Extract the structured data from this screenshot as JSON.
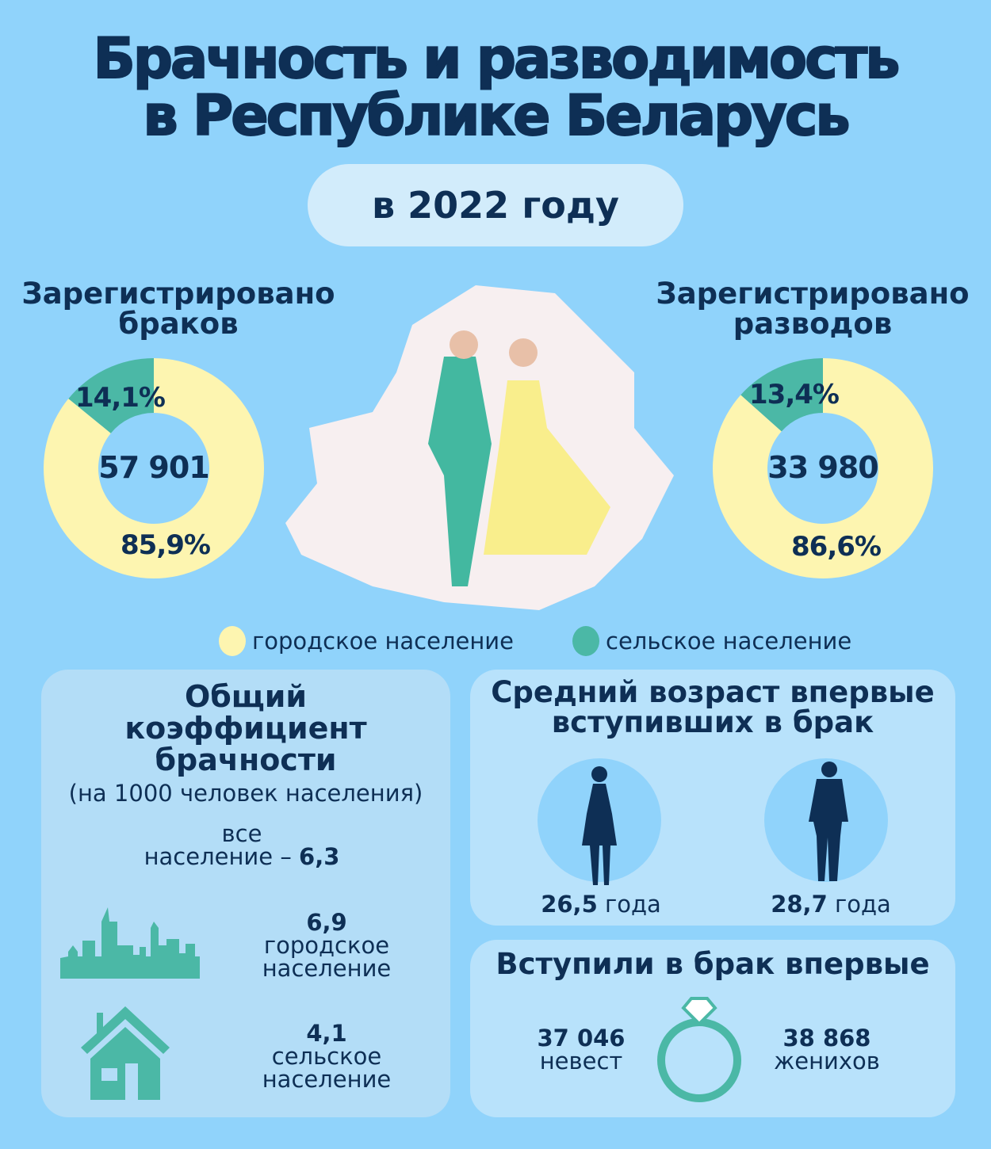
{
  "title": {
    "line1": "Брачность и разводимость",
    "line2": "в Республике Беларусь"
  },
  "year_label": "в 2022 году",
  "colors": {
    "background": "#90d3fb",
    "urban": "#fdf5b0",
    "rural": "#4bb8a6",
    "text": "#0e2f55",
    "panel": "#b3ddf7"
  },
  "chart_data": [
    {
      "type": "pie",
      "title": "Зарегистрировано браков",
      "total": "57 901",
      "categories": [
        "городское население",
        "сельское население"
      ],
      "values": [
        85.9,
        14.1
      ],
      "labels": [
        "85,9%",
        "14,1%"
      ]
    },
    {
      "type": "pie",
      "title": "Зарегистрировано разводов",
      "total": "33 980",
      "categories": [
        "городское население",
        "сельское население"
      ],
      "values": [
        86.6,
        13.4
      ],
      "labels": [
        "86,6%",
        "13,4%"
      ]
    }
  ],
  "marriages": {
    "title1": "Зарегистрировано",
    "title2": "браков"
  },
  "divorces": {
    "title1": "Зарегистрировано",
    "title2": "разводов"
  },
  "legend": {
    "urban": "городское население",
    "rural": "сельское население"
  },
  "rate": {
    "title1": "Общий",
    "title2": "коэффициент",
    "title3": "брачности",
    "subtitle": "(на 1000 человек населения)",
    "all_label1": "все",
    "all_label2": "население – ",
    "all_value": "6,3",
    "urban_value": "6,9",
    "urban_l1": "городское",
    "urban_l2": "население",
    "rural_value": "4,1",
    "rural_l1": "сельское",
    "rural_l2": "население"
  },
  "age": {
    "title1": "Средний возраст впервые",
    "title2": "вступивших в брак",
    "female_value": "26,5",
    "male_value": "28,7",
    "unit": " года"
  },
  "first": {
    "title": "Вступили в брак впервые",
    "brides_value": "37 046",
    "brides_label": "невест",
    "grooms_value": "38 868",
    "grooms_label": "женихов"
  }
}
